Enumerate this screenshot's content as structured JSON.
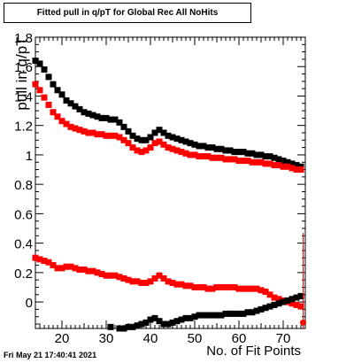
{
  "chart_data": {
    "type": "scatter",
    "title": "Fitted pull in q/pT for Global Rec All NoHits",
    "ylabel": "pull in q/pT",
    "xlabel": "No. of Fit Points",
    "xlim": [
      14,
      75
    ],
    "ylim": [
      -0.18,
      1.8
    ],
    "x_ticks": [
      20,
      30,
      40,
      50,
      60,
      70
    ],
    "y_ticks": [
      0,
      0.2,
      0.4,
      0.6,
      0.8,
      1,
      1.2,
      1.4,
      1.6,
      1.8
    ],
    "y_tick_labels": [
      "0",
      "0.2",
      "0.4",
      "0.6",
      "0.8",
      "1",
      "1.2",
      "1.4",
      "1.6",
      "1.8"
    ],
    "grid": false,
    "series": [
      {
        "color": "#000000",
        "x": [
          14,
          15,
          16,
          17,
          18,
          19,
          20,
          21,
          22,
          23,
          24,
          25,
          26,
          27,
          28,
          29,
          30,
          31,
          32,
          33,
          34,
          35,
          36,
          37,
          38,
          39,
          40,
          41,
          42,
          43,
          44,
          45,
          46,
          47,
          48,
          49,
          50,
          51,
          52,
          53,
          54,
          55,
          56,
          57,
          58,
          59,
          60,
          61,
          62,
          63,
          64,
          65,
          66,
          67,
          68,
          69,
          70,
          71,
          72,
          73,
          74
        ],
        "y": [
          1.64,
          1.62,
          1.58,
          1.53,
          1.48,
          1.44,
          1.41,
          1.37,
          1.35,
          1.33,
          1.31,
          1.29,
          1.28,
          1.27,
          1.26,
          1.25,
          1.25,
          1.24,
          1.24,
          1.22,
          1.19,
          1.16,
          1.13,
          1.11,
          1.1,
          1.1,
          1.12,
          1.15,
          1.17,
          1.15,
          1.13,
          1.12,
          1.11,
          1.1,
          1.09,
          1.08,
          1.07,
          1.06,
          1.06,
          1.05,
          1.05,
          1.04,
          1.04,
          1.03,
          1.03,
          1.02,
          1.02,
          1.02,
          1.01,
          1.01,
          1.0,
          1.0,
          0.99,
          0.99,
          0.98,
          0.97,
          0.96,
          0.95,
          0.94,
          0.93,
          0.92
        ]
      },
      {
        "color": "#ff0000",
        "x": [
          14,
          15,
          16,
          17,
          18,
          19,
          20,
          21,
          22,
          23,
          24,
          25,
          26,
          27,
          28,
          29,
          30,
          31,
          32,
          33,
          34,
          35,
          36,
          37,
          38,
          39,
          40,
          41,
          42,
          43,
          44,
          45,
          46,
          47,
          48,
          49,
          50,
          51,
          52,
          53,
          54,
          55,
          56,
          57,
          58,
          59,
          60,
          61,
          62,
          63,
          64,
          65,
          66,
          67,
          68,
          69,
          70,
          71,
          72,
          73,
          74
        ],
        "y": [
          1.48,
          1.44,
          1.39,
          1.34,
          1.29,
          1.26,
          1.23,
          1.21,
          1.19,
          1.18,
          1.17,
          1.16,
          1.15,
          1.15,
          1.14,
          1.14,
          1.13,
          1.13,
          1.13,
          1.12,
          1.1,
          1.08,
          1.05,
          1.03,
          1.02,
          1.03,
          1.05,
          1.08,
          1.09,
          1.07,
          1.05,
          1.04,
          1.03,
          1.02,
          1.01,
          1.0,
          1.0,
          0.99,
          0.99,
          0.99,
          0.98,
          0.98,
          0.98,
          0.97,
          0.97,
          0.97,
          0.96,
          0.96,
          0.96,
          0.95,
          0.95,
          0.95,
          0.94,
          0.94,
          0.93,
          0.93,
          0.92,
          0.92,
          0.91,
          0.9,
          0.9
        ]
      },
      {
        "color": "#ff0000",
        "x": [
          14,
          15,
          16,
          17,
          18,
          19,
          20,
          21,
          22,
          23,
          24,
          25,
          26,
          27,
          28,
          29,
          30,
          31,
          32,
          33,
          34,
          35,
          36,
          37,
          38,
          39,
          40,
          41,
          42,
          43,
          44,
          45,
          46,
          47,
          48,
          49,
          50,
          51,
          52,
          53,
          54,
          55,
          56,
          57,
          58,
          59,
          60,
          61,
          62,
          63,
          64,
          65,
          66,
          67,
          68,
          69,
          70,
          71,
          72,
          73,
          74
        ],
        "y": [
          0.3,
          0.29,
          0.28,
          0.27,
          0.25,
          0.23,
          0.23,
          0.24,
          0.24,
          0.23,
          0.22,
          0.22,
          0.21,
          0.21,
          0.2,
          0.19,
          0.18,
          0.18,
          0.18,
          0.17,
          0.16,
          0.15,
          0.14,
          0.14,
          0.13,
          0.13,
          0.14,
          0.16,
          0.18,
          0.16,
          0.14,
          0.13,
          0.12,
          0.12,
          0.11,
          0.11,
          0.1,
          0.1,
          0.1,
          0.09,
          0.09,
          0.1,
          0.1,
          0.1,
          0.1,
          0.1,
          0.09,
          0.09,
          0.09,
          0.09,
          0.09,
          0.08,
          0.07,
          0.05,
          0.03,
          0.02,
          0.01,
          0.0,
          -0.01,
          -0.02,
          -0.03
        ]
      },
      {
        "color": "#000000",
        "x": [
          31,
          33,
          34,
          35,
          36,
          37,
          38,
          39,
          40,
          41,
          42,
          43,
          44,
          45,
          46,
          47,
          48,
          49,
          50,
          51,
          52,
          53,
          54,
          55,
          56,
          57,
          58,
          59,
          60,
          61,
          62,
          63,
          64,
          65,
          66,
          67,
          68,
          69,
          70,
          71,
          72,
          73,
          74
        ],
        "y": [
          -0.17,
          -0.18,
          -0.18,
          -0.17,
          -0.17,
          -0.16,
          -0.15,
          -0.14,
          -0.12,
          -0.11,
          -0.13,
          -0.15,
          -0.15,
          -0.14,
          -0.13,
          -0.12,
          -0.11,
          -0.11,
          -0.1,
          -0.09,
          -0.09,
          -0.09,
          -0.09,
          -0.09,
          -0.09,
          -0.08,
          -0.08,
          -0.08,
          -0.08,
          -0.08,
          -0.07,
          -0.07,
          -0.06,
          -0.05,
          -0.04,
          -0.03,
          -0.02,
          -0.01,
          0.0,
          0.01,
          0.02,
          0.03,
          0.04
        ]
      }
    ],
    "end_marker": {
      "x": 74.5,
      "y": -0.14,
      "color": "#ff0000"
    }
  },
  "footer": {
    "date": "Fri May 21 17:40:41 2021"
  }
}
